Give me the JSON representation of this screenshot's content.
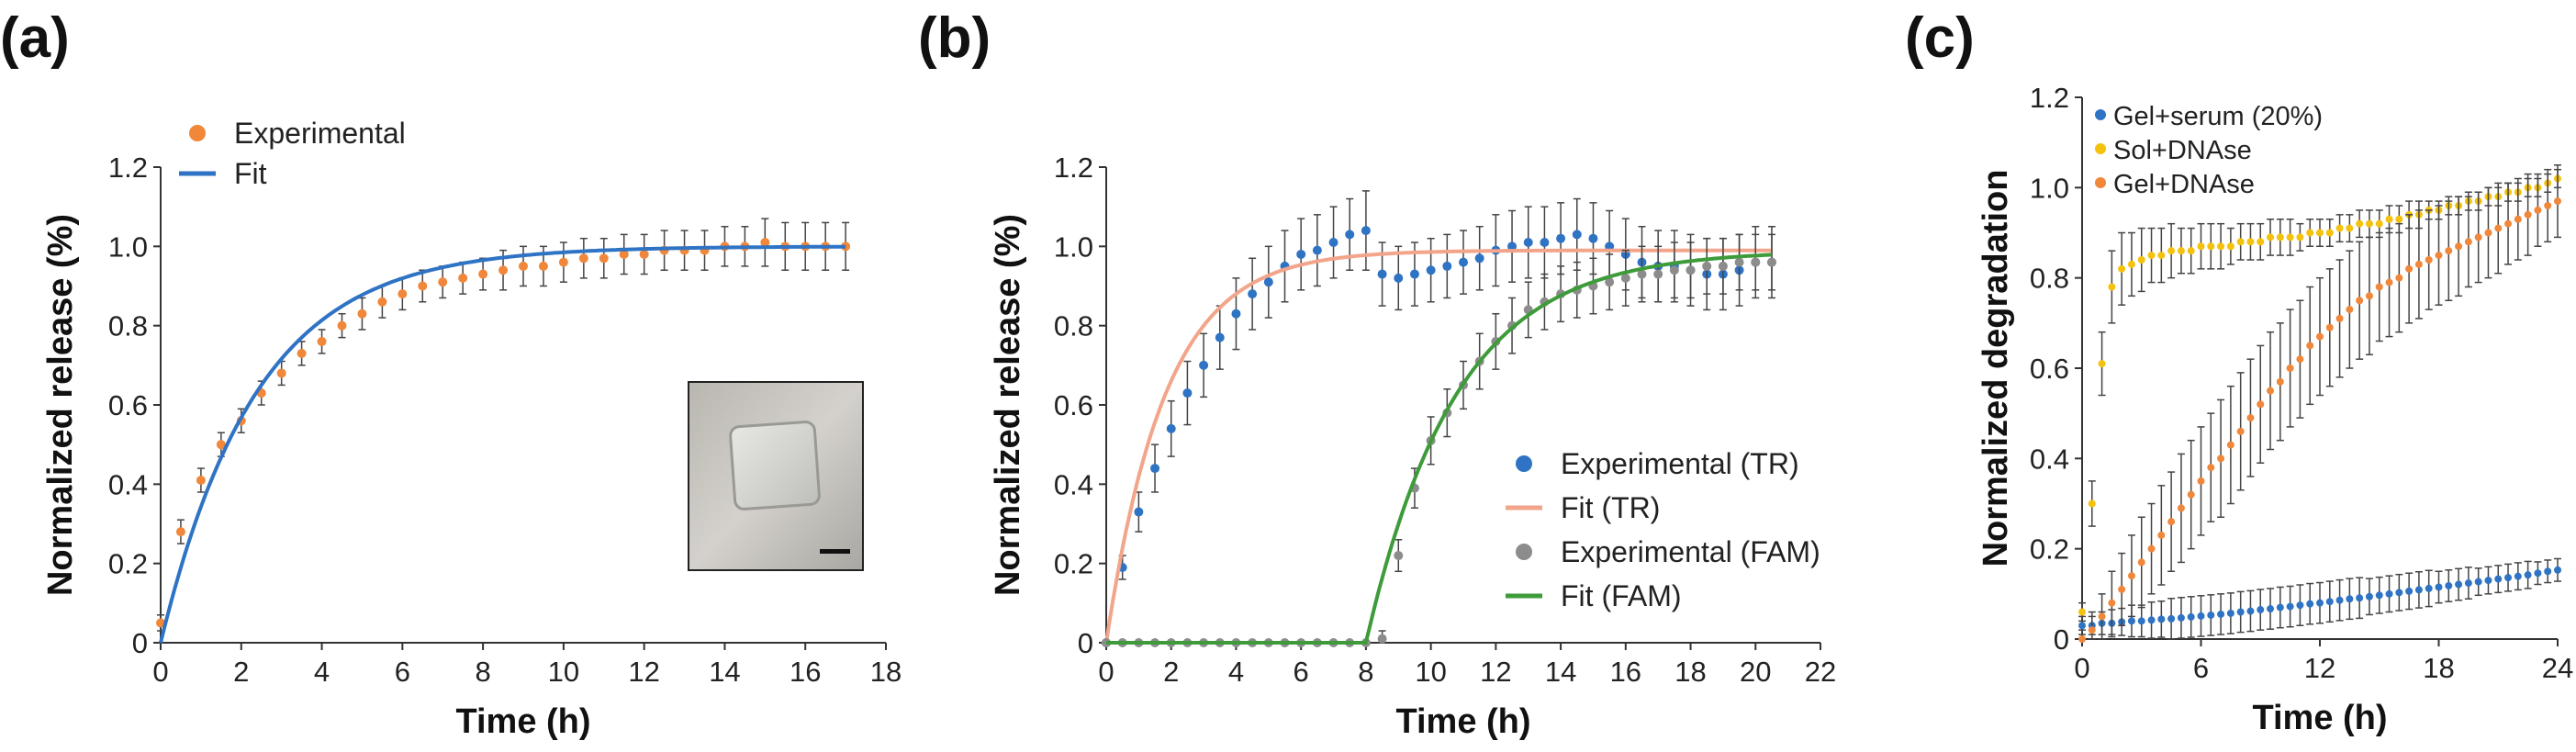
{
  "chart_data": [
    {
      "panel_label": "(a)",
      "type": "line",
      "xlabel": "Time (h)",
      "ylabel": "Normalized release (%)",
      "xlim": [
        0,
        18
      ],
      "ylim": [
        0,
        1.2
      ],
      "xticks": [
        "0",
        "2",
        "4",
        "6",
        "8",
        "10",
        "12",
        "14",
        "16",
        "18"
      ],
      "yticks": [
        "0",
        "0.2",
        "0.4",
        "0.6",
        "0.8",
        "1.0",
        "1.2"
      ],
      "legend": {
        "position": "top-left",
        "entries": [
          "Experimental",
          "Fit"
        ]
      },
      "inset": "photograph of hydrogel with scale bar (bottom-right)",
      "series": [
        {
          "name": "Experimental",
          "kind": "scatter",
          "color": "#F0873A",
          "x": [
            0,
            0.5,
            1,
            1.5,
            2,
            2.5,
            3,
            3.5,
            4,
            4.5,
            5,
            5.5,
            6,
            6.5,
            7,
            7.5,
            8,
            8.5,
            9,
            9.5,
            10,
            10.5,
            11,
            11.5,
            12,
            12.5,
            13,
            13.5,
            14,
            14.5,
            15,
            15.5,
            16,
            16.5,
            17
          ],
          "y": [
            0.05,
            0.28,
            0.41,
            0.5,
            0.56,
            0.63,
            0.68,
            0.73,
            0.76,
            0.8,
            0.83,
            0.86,
            0.88,
            0.9,
            0.91,
            0.92,
            0.93,
            0.94,
            0.95,
            0.95,
            0.96,
            0.97,
            0.97,
            0.98,
            0.98,
            0.99,
            0.99,
            0.99,
            1.0,
            1.0,
            1.01,
            1.0,
            1.0,
            1.0,
            1.0
          ],
          "err": [
            0.02,
            0.03,
            0.03,
            0.03,
            0.03,
            0.03,
            0.03,
            0.03,
            0.03,
            0.03,
            0.04,
            0.04,
            0.04,
            0.04,
            0.04,
            0.04,
            0.04,
            0.05,
            0.05,
            0.05,
            0.05,
            0.05,
            0.05,
            0.05,
            0.05,
            0.05,
            0.05,
            0.05,
            0.05,
            0.05,
            0.06,
            0.06,
            0.06,
            0.06,
            0.06
          ]
        },
        {
          "name": "Fit",
          "kind": "line",
          "color": "#2F73C4",
          "model": "exponential",
          "amplitude": 1.0,
          "rate": 0.42,
          "onset": 0,
          "x_range": [
            0,
            17
          ]
        }
      ]
    },
    {
      "panel_label": "(b)",
      "type": "line",
      "xlabel": "Time (h)",
      "ylabel": "Normalized release (%)",
      "xlim": [
        0,
        22
      ],
      "ylim": [
        0,
        1.2
      ],
      "xticks": [
        "0",
        "2",
        "4",
        "6",
        "8",
        "10",
        "12",
        "14",
        "16",
        "18",
        "20",
        "22"
      ],
      "yticks": [
        "0",
        "0.2",
        "0.4",
        "0.6",
        "0.8",
        "1.0",
        "1.2"
      ],
      "legend": {
        "position": "bottom-right",
        "entries": [
          "Experimental (TR)",
          "Fit (TR)",
          "Experimental (FAM)",
          "Fit (FAM)"
        ]
      },
      "series": [
        {
          "name": "Experimental (TR)",
          "kind": "scatter",
          "color": "#2F73C4",
          "x": [
            0,
            0.5,
            1,
            1.5,
            2,
            2.5,
            3,
            3.5,
            4,
            4.5,
            5,
            5.5,
            6,
            6.5,
            7,
            7.5,
            8,
            8.5,
            9,
            9.5,
            10,
            10.5,
            11,
            11.5,
            12,
            12.5,
            13,
            13.5,
            14,
            14.5,
            15,
            15.5,
            16,
            16.5,
            17,
            17.5,
            18,
            18.5,
            19,
            19.5,
            20,
            20.5
          ],
          "y": [
            0,
            0.19,
            0.33,
            0.44,
            0.54,
            0.63,
            0.7,
            0.77,
            0.83,
            0.88,
            0.91,
            0.95,
            0.98,
            0.99,
            1.01,
            1.03,
            1.04,
            0.93,
            0.92,
            0.93,
            0.94,
            0.95,
            0.96,
            0.97,
            0.99,
            1.0,
            1.01,
            1.01,
            1.02,
            1.03,
            1.02,
            1.0,
            0.98,
            0.96,
            0.95,
            0.95,
            0.94,
            0.93,
            0.93,
            0.94,
            0.96,
            0.96
          ],
          "err": [
            0,
            0.03,
            0.05,
            0.06,
            0.07,
            0.08,
            0.08,
            0.08,
            0.09,
            0.09,
            0.09,
            0.09,
            0.09,
            0.09,
            0.09,
            0.09,
            0.1,
            0.08,
            0.08,
            0.08,
            0.08,
            0.08,
            0.08,
            0.08,
            0.09,
            0.09,
            0.09,
            0.09,
            0.09,
            0.09,
            0.09,
            0.09,
            0.09,
            0.09,
            0.09,
            0.09,
            0.09,
            0.09,
            0.09,
            0.09,
            0.09,
            0.09
          ]
        },
        {
          "name": "Fit (TR)",
          "kind": "line",
          "color": "#F2A58A",
          "model": "exponential",
          "amplitude": 0.99,
          "rate": 0.55,
          "onset": 0,
          "x_range": [
            0,
            20.5
          ]
        },
        {
          "name": "Experimental (FAM)",
          "kind": "scatter",
          "color": "#8C8C8C",
          "x": [
            0,
            0.5,
            1,
            1.5,
            2,
            2.5,
            3,
            3.5,
            4,
            4.5,
            5,
            5.5,
            6,
            6.5,
            7,
            7.5,
            8,
            8.5,
            9,
            9.5,
            10,
            10.5,
            11,
            11.5,
            12,
            12.5,
            13,
            13.5,
            14,
            14.5,
            15,
            15.5,
            16,
            16.5,
            17,
            17.5,
            18,
            18.5,
            19,
            19.5,
            20,
            20.5
          ],
          "y": [
            0,
            0,
            0,
            0,
            0,
            0,
            0,
            0,
            0,
            0,
            0,
            0,
            0,
            0,
            0,
            0,
            0,
            0.01,
            0.22,
            0.39,
            0.51,
            0.58,
            0.65,
            0.71,
            0.76,
            0.8,
            0.84,
            0.86,
            0.88,
            0.89,
            0.9,
            0.91,
            0.92,
            0.93,
            0.93,
            0.94,
            0.94,
            0.95,
            0.95,
            0.96,
            0.96,
            0.96
          ],
          "err": [
            0,
            0,
            0,
            0,
            0,
            0,
            0,
            0,
            0,
            0,
            0,
            0,
            0,
            0,
            0,
            0,
            0,
            0.02,
            0.04,
            0.05,
            0.06,
            0.06,
            0.06,
            0.07,
            0.07,
            0.07,
            0.07,
            0.07,
            0.07,
            0.07,
            0.07,
            0.07,
            0.07,
            0.07,
            0.07,
            0.07,
            0.07,
            0.07,
            0.07,
            0.07,
            0.07,
            0.07
          ]
        },
        {
          "name": "Fit (FAM)",
          "kind": "line",
          "color": "#3E9B3A",
          "model": "exponential",
          "amplitude": 0.99,
          "rate": 0.36,
          "onset": 8,
          "x_range": [
            0,
            20.5
          ]
        }
      ]
    },
    {
      "panel_label": "(c)",
      "type": "scatter",
      "xlabel": "Time (h)",
      "ylabel": "Normalized degradation",
      "xlim": [
        0,
        24
      ],
      "ylim": [
        0,
        1.2
      ],
      "xticks": [
        "0",
        "6",
        "12",
        "18",
        "24"
      ],
      "yticks": [
        "0",
        "0.2",
        "0.4",
        "0.6",
        "0.8",
        "1.0",
        "1.2"
      ],
      "legend": {
        "position": "top-left",
        "entries": [
          "Gel+serum (20%)",
          "Sol+DNAse",
          "Gel+DNAse"
        ]
      },
      "series": [
        {
          "name": "Gel+serum (20%)",
          "kind": "scatter",
          "color": "#2F73C4",
          "x": [
            0,
            0.5,
            1,
            1.5,
            2,
            2.5,
            3,
            3.5,
            4,
            4.5,
            5,
            5.5,
            6,
            6.5,
            7,
            7.5,
            8,
            8.5,
            9,
            9.5,
            10,
            10.5,
            11,
            11.5,
            12,
            12.5,
            13,
            13.5,
            14,
            14.5,
            15,
            15.5,
            16,
            16.5,
            17,
            17.5,
            18,
            18.5,
            19,
            19.5,
            20,
            20.5,
            21,
            21.5,
            22,
            22.5,
            23,
            23.5,
            24
          ],
          "y": [
            0.03,
            0.03,
            0.035,
            0.035,
            0.038,
            0.04,
            0.04,
            0.042,
            0.044,
            0.045,
            0.047,
            0.049,
            0.051,
            0.053,
            0.055,
            0.057,
            0.06,
            0.062,
            0.065,
            0.067,
            0.07,
            0.072,
            0.075,
            0.078,
            0.08,
            0.083,
            0.086,
            0.089,
            0.091,
            0.094,
            0.097,
            0.1,
            0.103,
            0.106,
            0.109,
            0.112,
            0.115,
            0.118,
            0.121,
            0.124,
            0.127,
            0.13,
            0.133,
            0.136,
            0.139,
            0.142,
            0.146,
            0.15,
            0.153
          ],
          "err": [
            0.02,
            0.02,
            0.025,
            0.03,
            0.03,
            0.035,
            0.035,
            0.04,
            0.04,
            0.045,
            0.045,
            0.045,
            0.045,
            0.045,
            0.045,
            0.045,
            0.045,
            0.045,
            0.045,
            0.045,
            0.045,
            0.045,
            0.045,
            0.045,
            0.045,
            0.045,
            0.045,
            0.045,
            0.045,
            0.04,
            0.04,
            0.04,
            0.04,
            0.04,
            0.04,
            0.04,
            0.035,
            0.035,
            0.035,
            0.035,
            0.03,
            0.03,
            0.03,
            0.03,
            0.03,
            0.03,
            0.025,
            0.025,
            0.025
          ]
        },
        {
          "name": "Sol+DNAse",
          "kind": "scatter",
          "color": "#F4C20D",
          "x": [
            0,
            0.5,
            1,
            1.5,
            2,
            2.5,
            3,
            3.5,
            4,
            4.5,
            5,
            5.5,
            6,
            6.5,
            7,
            7.5,
            8,
            8.5,
            9,
            9.5,
            10,
            10.5,
            11,
            11.5,
            12,
            12.5,
            13,
            13.5,
            14,
            14.5,
            15,
            15.5,
            16,
            16.5,
            17,
            17.5,
            18,
            18.5,
            19,
            19.5,
            20,
            20.5,
            21,
            21.5,
            22,
            22.5,
            23,
            23.5,
            24
          ],
          "y": [
            0.06,
            0.3,
            0.61,
            0.78,
            0.82,
            0.83,
            0.84,
            0.85,
            0.85,
            0.86,
            0.86,
            0.86,
            0.87,
            0.87,
            0.87,
            0.87,
            0.88,
            0.88,
            0.88,
            0.89,
            0.89,
            0.89,
            0.89,
            0.9,
            0.9,
            0.9,
            0.91,
            0.91,
            0.92,
            0.92,
            0.92,
            0.93,
            0.93,
            0.94,
            0.94,
            0.95,
            0.95,
            0.96,
            0.96,
            0.97,
            0.97,
            0.98,
            0.98,
            0.99,
            0.99,
            1.0,
            1.0,
            1.01,
            1.02
          ],
          "err": [
            0.02,
            0.05,
            0.07,
            0.08,
            0.08,
            0.07,
            0.07,
            0.06,
            0.06,
            0.06,
            0.05,
            0.05,
            0.05,
            0.05,
            0.05,
            0.04,
            0.04,
            0.04,
            0.04,
            0.04,
            0.04,
            0.04,
            0.03,
            0.03,
            0.03,
            0.03,
            0.03,
            0.03,
            0.03,
            0.03,
            0.03,
            0.03,
            0.03,
            0.03,
            0.03,
            0.02,
            0.02,
            0.02,
            0.02,
            0.02,
            0.02,
            0.02,
            0.02,
            0.02,
            0.02,
            0.02,
            0.02,
            0.02,
            0.02
          ]
        },
        {
          "name": "Gel+DNAse",
          "kind": "scatter",
          "color": "#F0873A",
          "x": [
            0,
            0.5,
            1,
            1.5,
            2,
            2.5,
            3,
            3.5,
            4,
            4.5,
            5,
            5.5,
            6,
            6.5,
            7,
            7.5,
            8,
            8.5,
            9,
            9.5,
            10,
            10.5,
            11,
            11.5,
            12,
            12.5,
            13,
            13.5,
            14,
            14.5,
            15,
            15.5,
            16,
            16.5,
            17,
            17.5,
            18,
            18.5,
            19,
            19.5,
            20,
            20.5,
            21,
            21.5,
            22,
            22.5,
            23,
            23.5,
            24
          ],
          "y": [
            0,
            0.02,
            0.05,
            0.08,
            0.11,
            0.14,
            0.17,
            0.2,
            0.23,
            0.26,
            0.29,
            0.32,
            0.35,
            0.38,
            0.4,
            0.43,
            0.46,
            0.49,
            0.52,
            0.55,
            0.57,
            0.6,
            0.62,
            0.65,
            0.67,
            0.69,
            0.71,
            0.73,
            0.75,
            0.76,
            0.78,
            0.79,
            0.8,
            0.82,
            0.83,
            0.84,
            0.85,
            0.86,
            0.87,
            0.88,
            0.89,
            0.9,
            0.91,
            0.92,
            0.93,
            0.94,
            0.95,
            0.96,
            0.97
          ],
          "err": [
            0.02,
            0.04,
            0.05,
            0.07,
            0.08,
            0.09,
            0.1,
            0.1,
            0.11,
            0.11,
            0.12,
            0.12,
            0.12,
            0.12,
            0.13,
            0.13,
            0.13,
            0.13,
            0.13,
            0.13,
            0.13,
            0.13,
            0.13,
            0.13,
            0.13,
            0.13,
            0.13,
            0.13,
            0.13,
            0.13,
            0.12,
            0.12,
            0.12,
            0.12,
            0.12,
            0.11,
            0.11,
            0.11,
            0.11,
            0.1,
            0.1,
            0.1,
            0.1,
            0.09,
            0.09,
            0.09,
            0.08,
            0.08,
            0.08
          ]
        }
      ]
    }
  ]
}
